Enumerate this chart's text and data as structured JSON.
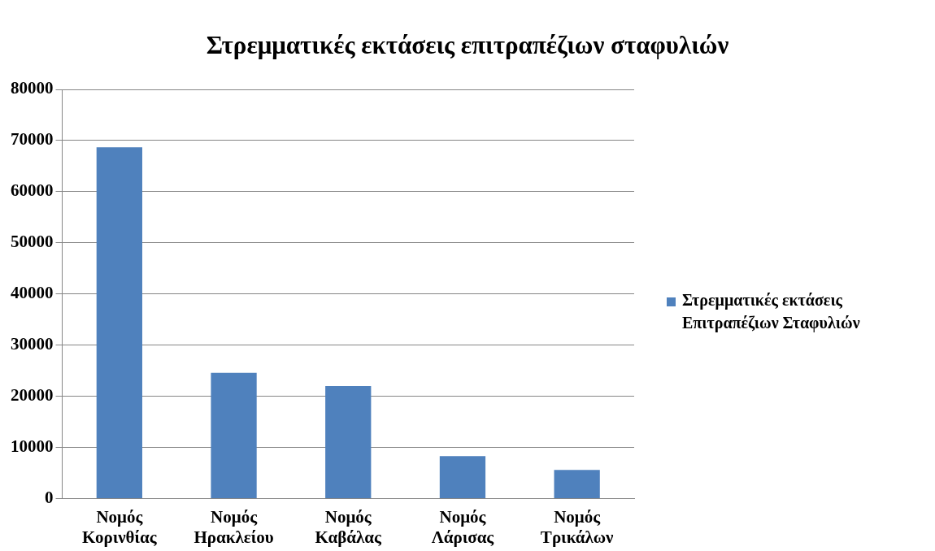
{
  "chart_data": {
    "type": "bar",
    "title": "Στρεμματικές εκτάσεις επιτραπέζιων σταφυλιών",
    "categories": [
      "Νομός Κορινθίας",
      "Νομός Ηρακλείου",
      "Νομός Καβάλας",
      "Νομός Λάρισας",
      "Νομός Τρικάλων"
    ],
    "series": [
      {
        "name": "Στρεμματικές εκτάσεις Επιτραπέζιων Σταφυλιών",
        "color": "#4f81bd",
        "values": [
          68700,
          24600,
          22000,
          8300,
          5600
        ]
      }
    ],
    "ylim": [
      0,
      80000
    ],
    "yticks": [
      0,
      10000,
      20000,
      30000,
      40000,
      50000,
      60000,
      70000,
      80000
    ],
    "grid": "y",
    "legend": "right"
  }
}
